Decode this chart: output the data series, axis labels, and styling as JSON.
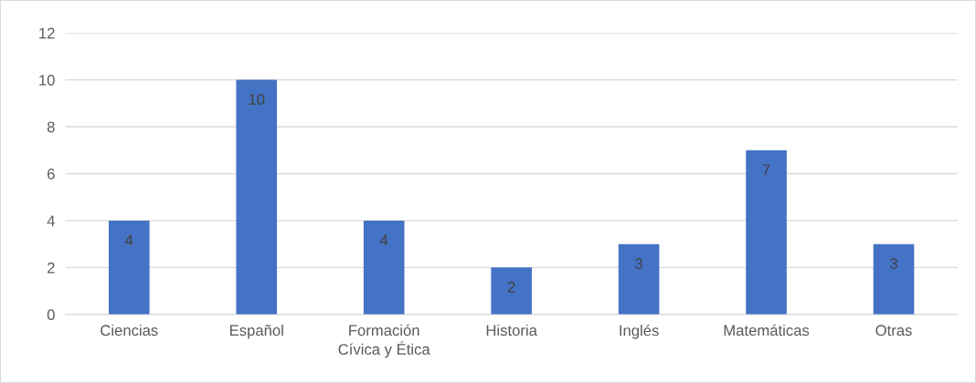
{
  "chart_data": {
    "type": "bar",
    "categories": [
      "Ciencias",
      "Español",
      "Formación\nCívica y Ética",
      "Historia",
      "Inglés",
      "Matemáticas",
      "Otras"
    ],
    "values": [
      4,
      10,
      4,
      2,
      3,
      7,
      3
    ],
    "color": "#4472c4",
    "ylim": [
      0,
      12
    ],
    "yticks": [
      0,
      2,
      4,
      6,
      8,
      10,
      12
    ],
    "grid": "y",
    "data_labels": true
  }
}
